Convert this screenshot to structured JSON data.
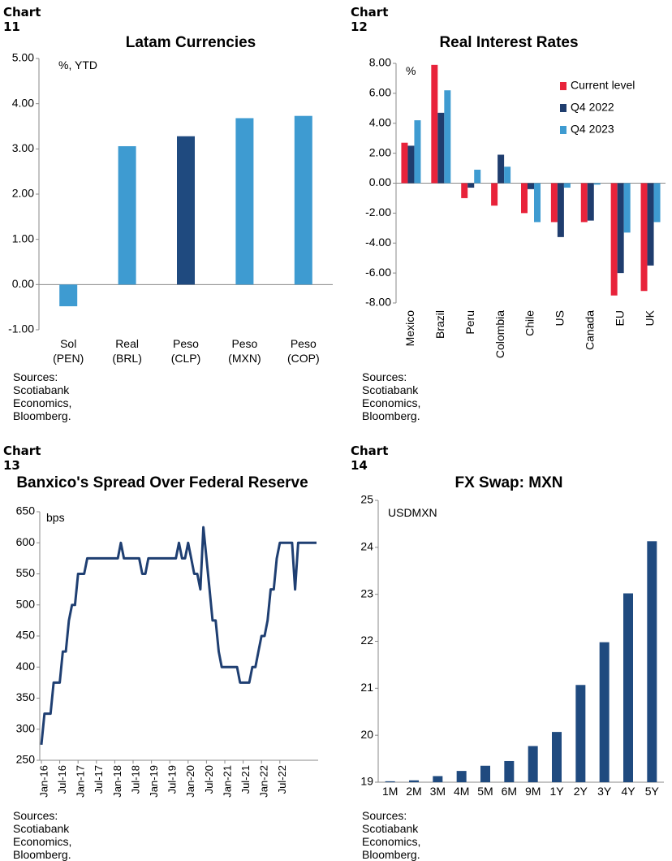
{
  "sources_text": "Sources: Scotiabank Economics, Bloomberg.",
  "colors": {
    "light_blue": "#3e9bd1",
    "dark_blue": "#1f4a7f",
    "red": "#e8233b",
    "navy": "#1f3d6e",
    "line": "#1f3f72"
  },
  "chart_data": [
    {
      "label": "Chart 11",
      "type": "bar",
      "title": "Latam Currencies",
      "unit_note": "%, YTD",
      "categories": [
        [
          "Sol",
          "(PEN)"
        ],
        [
          "Real",
          "(BRL)"
        ],
        [
          "Peso",
          "(CLP)"
        ],
        [
          "Peso",
          "(MXN)"
        ],
        [
          "Peso",
          "(COP)"
        ]
      ],
      "values": [
        -0.48,
        3.06,
        3.28,
        3.68,
        3.73
      ],
      "highlight_index": 2,
      "ylim": [
        -1,
        5
      ],
      "yticks": [
        "-1.00",
        "0.00",
        "1.00",
        "2.00",
        "3.00",
        "4.00",
        "5.00"
      ],
      "grid": false
    },
    {
      "label": "Chart 12",
      "type": "bar",
      "title": "Real Interest Rates",
      "unit_note": "%",
      "categories": [
        "Mexico",
        "Brazil",
        "Peru",
        "Colombia",
        "Chile",
        "US",
        "Canada",
        "EU",
        "UK"
      ],
      "series": [
        {
          "name": "Current level",
          "values": [
            2.7,
            7.9,
            -1.0,
            -1.5,
            -2.0,
            -2.6,
            -2.6,
            -7.5,
            -7.2
          ]
        },
        {
          "name": "Q4 2022",
          "values": [
            2.5,
            4.7,
            -0.3,
            1.9,
            -0.4,
            -3.6,
            -2.5,
            -6.0,
            -5.5
          ]
        },
        {
          "name": "Q4 2023",
          "values": [
            4.2,
            6.2,
            0.9,
            1.1,
            -2.6,
            -0.3,
            -0.1,
            -3.3,
            -2.6
          ]
        }
      ],
      "ylim": [
        -8,
        8
      ],
      "yticks": [
        "-8.00",
        "-6.00",
        "-4.00",
        "-2.00",
        "0.00",
        "2.00",
        "4.00",
        "6.00",
        "8.00"
      ],
      "legend": "top-right",
      "grid": false
    },
    {
      "label": "Chart 13",
      "type": "line",
      "title": "Banxico's Spread Over Federal Reserve",
      "unit_note": "bps",
      "x_start": "Jan-16",
      "xticks": [
        "Jan-16",
        "Jul-16",
        "Jan-17",
        "Jul-17",
        "Jan-18",
        "Jul-18",
        "Jan-19",
        "Jul-19",
        "Jan-20",
        "Jul-20",
        "Jan-21",
        "Jul-21",
        "Jan-22",
        "Jul-22"
      ],
      "values": [
        275,
        325,
        325,
        325,
        375,
        375,
        375,
        425,
        425,
        475,
        500,
        500,
        550,
        550,
        550,
        575,
        575,
        575,
        575,
        575,
        575,
        575,
        575,
        575,
        575,
        575,
        600,
        575,
        575,
        575,
        575,
        575,
        575,
        550,
        550,
        575,
        575,
        575,
        575,
        575,
        575,
        575,
        575,
        575,
        575,
        600,
        575,
        575,
        600,
        575,
        550,
        550,
        525,
        625,
        575,
        525,
        475,
        475,
        425,
        400,
        400,
        400,
        400,
        400,
        400,
        375,
        375,
        375,
        375,
        400,
        400,
        425,
        450,
        450,
        475,
        525,
        525,
        575,
        600,
        600,
        600,
        600,
        600,
        525,
        600,
        600,
        600,
        600,
        600,
        600,
        600
      ],
      "ylim": [
        250,
        650
      ],
      "yticks": [
        "250",
        "300",
        "350",
        "400",
        "450",
        "500",
        "550",
        "600",
        "650"
      ],
      "grid": false
    },
    {
      "label": "Chart 14",
      "type": "bar",
      "title": "FX Swap: MXN",
      "unit_note": "USDMXN",
      "categories": [
        "1M",
        "2M",
        "3M",
        "4M",
        "5M",
        "6M",
        "9M",
        "1Y",
        "2Y",
        "3Y",
        "4Y",
        "5Y"
      ],
      "values": [
        19.02,
        19.04,
        19.13,
        19.24,
        19.35,
        19.45,
        19.77,
        20.07,
        21.07,
        21.98,
        23.02,
        24.13
      ],
      "ylim": [
        19,
        25
      ],
      "yticks": [
        "19",
        "20",
        "21",
        "22",
        "23",
        "24",
        "25"
      ],
      "grid": false
    }
  ]
}
